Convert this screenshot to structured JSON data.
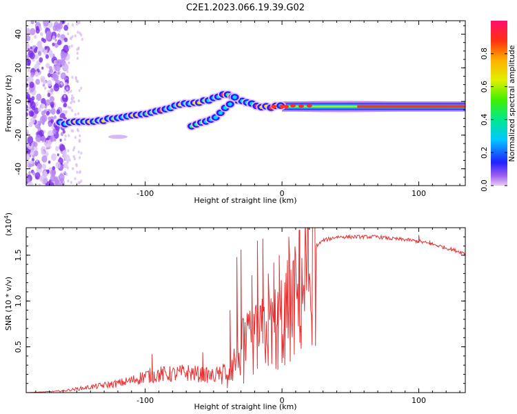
{
  "title": "C2E1.2023.066.19.39.G02",
  "chart_data": [
    {
      "type": "heatmap",
      "xlabel": "Height of straight line (km)",
      "ylabel": "Frequency (Hz)",
      "xlim": [
        -187,
        134
      ],
      "ylim": [
        -50,
        48
      ],
      "xticks": [
        -100,
        0,
        100
      ],
      "xtick_labels": [
        "-100",
        "0",
        "100"
      ],
      "yticks": [
        40,
        20,
        0,
        -20,
        -40
      ],
      "ytick_labels": [
        "40",
        "20",
        "0",
        "-20",
        "-40"
      ],
      "colorbar": {
        "label": "Normalized spectral amplitude",
        "range": [
          0,
          1
        ],
        "ticks": [
          0.0,
          0.2,
          0.4,
          0.6,
          0.8
        ],
        "tick_labels": [
          "0.0",
          "0.2",
          "0.4",
          "0.6",
          "0.8"
        ]
      },
      "ridge": {
        "x": [
          -162,
          -150,
          -140,
          -130,
          -120,
          -110,
          -100,
          -90,
          -80,
          -70,
          -60,
          -50,
          -42,
          -36,
          -30,
          -24,
          -18,
          -12,
          -6,
          0,
          10,
          20,
          40,
          60,
          80,
          100,
          120,
          134
        ],
        "y": [
          -13,
          -12.5,
          -12,
          -11,
          -10,
          -8.5,
          -7,
          -5,
          -3,
          -1,
          0,
          2,
          4,
          3,
          0,
          -1.5,
          -2.5,
          -3,
          -3,
          -3,
          -3,
          -3,
          -3,
          -3,
          -3,
          -3,
          -3,
          -3
        ]
      },
      "branch": {
        "x": [
          -66,
          -60,
          -55,
          -50,
          -45,
          -40,
          -36,
          -32
        ],
        "y": [
          -15,
          -13.5,
          -12,
          -10,
          -7,
          -3,
          1,
          4
        ]
      },
      "grid": false,
      "legend": "none"
    },
    {
      "type": "line",
      "xlabel": "Height of straight line (km)",
      "ylabel": "SNR (10 * v/v)",
      "multiplier_label": "(x10",
      "multiplier_exp": "4",
      "xlim": [
        -187,
        134
      ],
      "ylim": [
        0,
        1.8
      ],
      "xticks": [
        -100,
        0,
        100
      ],
      "xtick_labels": [
        "-100",
        "0",
        "100"
      ],
      "yticks": [
        0.5,
        1.0,
        1.5
      ],
      "ytick_labels": [
        "0.5",
        "1.0",
        "1.5"
      ],
      "series": [
        {
          "color": "#e83030",
          "envelope_x": [
            -187,
            -170,
            -160,
            -150,
            -140,
            -130,
            -120,
            -110,
            -100,
            -90,
            -80,
            -70,
            -60,
            -50,
            -40,
            -35,
            -30,
            -25,
            -20,
            -15,
            -10,
            -5,
            0,
            5,
            10,
            15,
            20,
            25,
            30,
            40,
            50,
            60,
            70,
            80,
            90,
            100,
            110,
            120,
            134
          ],
          "envelope_y": [
            0.0,
            0.01,
            0.02,
            0.04,
            0.06,
            0.08,
            0.1,
            0.13,
            0.18,
            0.2,
            0.2,
            0.22,
            0.2,
            0.18,
            0.25,
            0.35,
            0.5,
            0.55,
            0.6,
            0.65,
            0.7,
            0.75,
            0.85,
            0.95,
            1.05,
            1.25,
            1.45,
            1.6,
            1.66,
            1.7,
            1.7,
            1.7,
            1.7,
            1.68,
            1.67,
            1.65,
            1.62,
            1.58,
            1.52
          ],
          "spikes": [
            [
              -95,
              0.42
            ],
            [
              -58,
              0.44
            ],
            [
              -38,
              0.9
            ],
            [
              -33,
              1.48
            ],
            [
              -30,
              1.56
            ],
            [
              -22,
              1.28
            ],
            [
              -18,
              1.66
            ],
            [
              -14,
              1.68
            ],
            [
              -10,
              1.3
            ],
            [
              -6,
              1.42
            ],
            [
              -2,
              1.5
            ],
            [
              5,
              1.7
            ],
            [
              13,
              1.78
            ],
            [
              100,
              1.72
            ],
            [
              108,
              1.66
            ]
          ],
          "dips": [
            [
              13,
              0.65
            ],
            [
              2,
              0.3
            ],
            [
              -3,
              0.25
            ],
            [
              -40,
              0.05
            ],
            [
              -28,
              0.1
            ]
          ]
        }
      ],
      "grid": false,
      "legend": "none"
    }
  ]
}
